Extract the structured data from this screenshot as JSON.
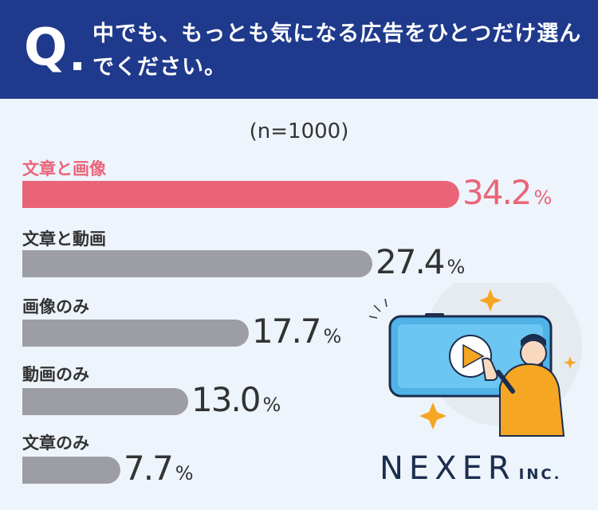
{
  "header": {
    "q_mark": "Q",
    "question": "中でも、もっとも気になる広告をひとつだけ選んでください。"
  },
  "n_label": "(n=1000)",
  "unit": "%",
  "logo": {
    "name": "NEXER",
    "suffix": "INC."
  },
  "colors": {
    "header": "#1f3a8c",
    "highlight": "#ea6478",
    "bar": "#9d9ea3",
    "background": "#eef4fb"
  },
  "chart_data": {
    "type": "bar",
    "orientation": "horizontal",
    "categories": [
      "文章と画像",
      "文章と動画",
      "画像のみ",
      "動画のみ",
      "文章のみ"
    ],
    "values": [
      34.2,
      27.4,
      17.7,
      13.0,
      7.7
    ],
    "value_labels": [
      "34.2",
      "27.4",
      "17.7",
      "13.0",
      "7.7"
    ],
    "highlight_index": 0,
    "title": "",
    "xlabel": "",
    "ylabel": ""
  }
}
